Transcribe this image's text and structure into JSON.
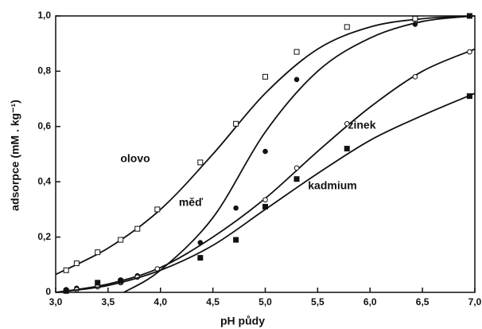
{
  "chart_data": {
    "type": "scatter",
    "x_label": "pH půdy",
    "y_label": "adsorpce (mM . kg⁻¹)",
    "xlim": [
      3.0,
      7.0
    ],
    "xticks": [
      {
        "value": 3.0,
        "label": "3,0"
      },
      {
        "value": 3.5,
        "label": "3,5"
      },
      {
        "value": 4.0,
        "label": "4,0"
      },
      {
        "value": 4.5,
        "label": "4,5"
      },
      {
        "value": 5.0,
        "label": "5,0"
      },
      {
        "value": 5.5,
        "label": "5,5"
      },
      {
        "value": 6.0,
        "label": "6,0"
      },
      {
        "value": 6.5,
        "label": "6,5"
      },
      {
        "value": 7.0,
        "label": "7,0"
      }
    ],
    "ylim": [
      0,
      1.0
    ],
    "yticks": [
      0,
      {
        "value": 0.2,
        "label": "0,2"
      },
      {
        "value": 0.4,
        "label": "0,4"
      },
      {
        "value": 0.6,
        "label": "0,6"
      },
      {
        "value": 0.8,
        "label": "0,8"
      },
      {
        "value": 1.0,
        "label": "1,0"
      }
    ],
    "series": [
      {
        "name": "olovo",
        "marker": "open-square",
        "color": "#111",
        "x": [
          3.1,
          3.2,
          3.4,
          3.62,
          3.78,
          3.97,
          4.38,
          4.72,
          5.0,
          5.3,
          5.78,
          6.43,
          6.95
        ],
        "values": [
          0.08,
          0.105,
          0.145,
          0.19,
          0.23,
          0.3,
          0.47,
          0.61,
          0.78,
          0.87,
          0.96,
          0.99,
          1.0
        ],
        "curve": {
          "x": [
            3.0,
            3.5,
            4.0,
            4.5,
            5.0,
            5.5,
            6.0,
            6.5,
            7.0
          ],
          "values": [
            0.065,
            0.16,
            0.3,
            0.5,
            0.72,
            0.88,
            0.96,
            0.99,
            1.0
          ]
        }
      },
      {
        "name": "měď",
        "marker": "filled-circle",
        "color": "#111",
        "x": [
          3.1,
          3.2,
          3.4,
          3.62,
          3.78,
          4.38,
          4.72,
          5.0,
          5.3,
          6.43,
          6.95
        ],
        "values": [
          0.01,
          0.015,
          0.025,
          0.045,
          0.06,
          0.18,
          0.305,
          0.51,
          0.77,
          0.97,
          1.0
        ],
        "curve": {
          "x": [
            3.65,
            4.0,
            4.5,
            5.0,
            5.5,
            6.0,
            6.5,
            7.0
          ],
          "values": [
            0,
            0.08,
            0.27,
            0.58,
            0.8,
            0.92,
            0.98,
            1.0
          ]
        }
      },
      {
        "name": "zinek",
        "marker": "open-circle",
        "color": "#111",
        "x": [
          3.1,
          3.2,
          3.4,
          3.62,
          3.78,
          3.97,
          5.0,
          5.3,
          5.78,
          6.43,
          6.95
        ],
        "values": [
          0.005,
          0.01,
          0.02,
          0.035,
          0.055,
          0.085,
          0.335,
          0.45,
          0.61,
          0.78,
          0.87
        ],
        "curve": {
          "x": [
            3.0,
            3.5,
            4.0,
            4.5,
            5.0,
            5.5,
            6.0,
            6.5,
            7.0
          ],
          "values": [
            0,
            0.03,
            0.09,
            0.2,
            0.34,
            0.51,
            0.67,
            0.8,
            0.88
          ]
        }
      },
      {
        "name": "kadmium",
        "marker": "filled-square",
        "color": "#111",
        "x": [
          3.1,
          3.4,
          3.62,
          4.38,
          4.72,
          5.0,
          5.3,
          5.78,
          6.95
        ],
        "values": [
          0.005,
          0.035,
          0.04,
          0.125,
          0.19,
          0.31,
          0.41,
          0.52,
          0.71
        ],
        "curve": {
          "x": [
            3.0,
            3.5,
            4.0,
            4.5,
            5.0,
            5.5,
            6.0,
            6.5,
            7.0
          ],
          "values": [
            0,
            0.025,
            0.08,
            0.17,
            0.3,
            0.43,
            0.55,
            0.64,
            0.72
          ]
        }
      }
    ]
  }
}
